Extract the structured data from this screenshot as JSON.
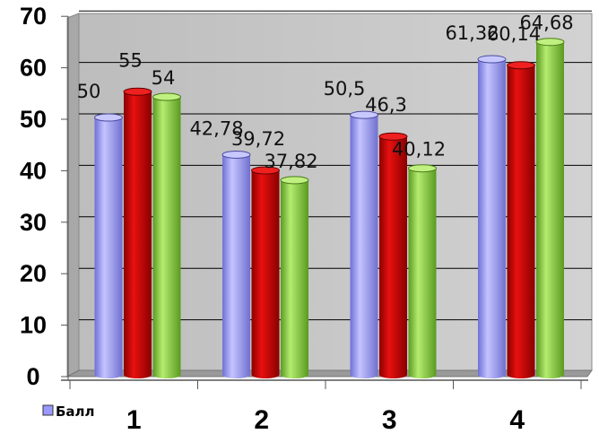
{
  "chart_data": {
    "type": "bar",
    "title": "",
    "xlabel": "",
    "ylabel": "",
    "categories": [
      "1",
      "2",
      "3",
      "4"
    ],
    "ylim": [
      0,
      70
    ],
    "yticks": [
      "0",
      "10",
      "20",
      "30",
      "40",
      "50",
      "60",
      "70"
    ],
    "grid": true,
    "legend_position": "bottom-left",
    "legend": [
      "Балл"
    ],
    "series": [
      {
        "name": "Балл",
        "color": "#9999ff",
        "values": [
          50,
          42.78,
          50.5,
          61.32
        ],
        "labels": [
          "50",
          "42,78",
          "50,5",
          "61,32"
        ]
      },
      {
        "name": "",
        "color": "#cc0000",
        "values": [
          55,
          39.72,
          46.3,
          60.14
        ],
        "labels": [
          "55",
          "39,72",
          "46,3",
          "60,14"
        ]
      },
      {
        "name": "",
        "color": "#88cc44",
        "values": [
          54,
          37.82,
          40.12,
          64.68
        ],
        "labels": [
          "54",
          "37,82",
          "40,12",
          "64,68"
        ]
      }
    ]
  }
}
